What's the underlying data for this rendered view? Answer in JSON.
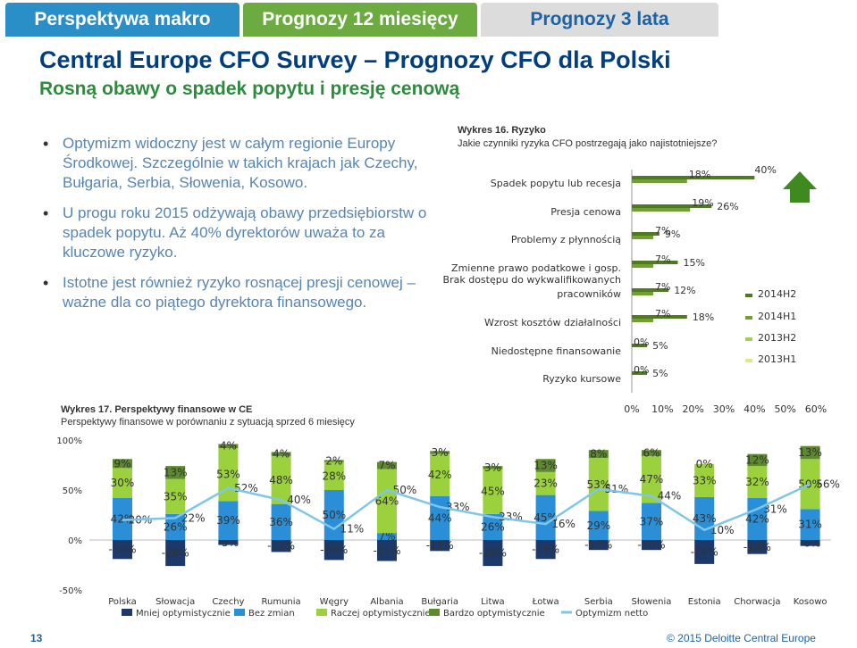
{
  "tabs": [
    "Perspektywa makro",
    "Prognozy 12 miesięcy",
    "Prognozy 3 lata"
  ],
  "title": "Central Europe CFO Survey – Prognozy CFO dla Polski",
  "subtitle": "Rosną obawy o spadek popytu i presję cenową",
  "bullets": [
    "Optymizm widoczny jest w całym regionie Europy Środkowej. Szczególnie w takich krajach jak Czechy, Bułgaria, Serbia, Słowenia, Kosowo.",
    "U progu roku 2015 odżywają obawy przedsiębiorstw o spadek popytu. Aż 40% dyrektorów uważa to za kluczowe ryzyko.",
    "Istotne jest również ryzyko rosnącej presji cenowej – ważne dla co piątego dyrektora finansowego."
  ],
  "wykres16": {
    "title": "Wykres 16. Ryzyko",
    "subtitle": "Jakie czynniki ryzyka CFO postrzegają jako najistotniejsze?"
  },
  "wykres17": {
    "title": "Wykres 17. Perspektywy finansowe w CE",
    "subtitle": "Perspektywy finansowe w porównaniu z sytuacją sprzed 6 miesięcy"
  },
  "colors": {
    "h2014H2": "#4f7a21",
    "h2014H1": "#6fa032",
    "h2013H2": "#a3cc5a",
    "h2013H1": "#d8ec8c",
    "mniej": "#1b3a6b",
    "bez": "#2a8fd6",
    "raczej": "#9bd13c",
    "bardzo": "#5d8a2c",
    "netto": "#7fc6e8"
  },
  "chart_data": [
    {
      "type": "bar",
      "orientation": "horizontal",
      "categories": [
        "Spadek popytu lub recesja",
        "Presja cenowa",
        "Problemy z płynnością",
        "Zmienne prawo podatkowe i gosp.",
        "Brak dostępu do wykwalifikowanych pracowników",
        "Wzrost kosztów działalności",
        "Niedostępne finansowanie",
        "Ryzyko kursowe"
      ],
      "series": [
        {
          "name": "2014H2",
          "values": [
            40,
            26,
            9,
            15,
            12,
            18,
            5,
            5
          ]
        },
        {
          "name": "2014H1",
          "values": [
            18,
            19,
            7,
            7,
            7,
            7,
            0,
            0
          ]
        },
        {
          "name": "2013H2",
          "values": [
            null,
            null,
            null,
            null,
            null,
            null,
            null,
            null
          ]
        },
        {
          "name": "2013H1",
          "values": [
            null,
            null,
            null,
            null,
            null,
            null,
            null,
            null
          ]
        }
      ],
      "point_labels": [
        [
          "40%",
          "18%"
        ],
        [
          "26%",
          "19%"
        ],
        [
          "9%",
          "7%"
        ],
        [
          "15%",
          "7%"
        ],
        [
          "12%",
          "7%"
        ],
        [
          "18%",
          "7%"
        ],
        [
          "5%",
          "0%"
        ],
        [
          "5%",
          "0%"
        ]
      ],
      "xticks": [
        "0%",
        "10%",
        "20%",
        "30%",
        "40%",
        "50%",
        "60%"
      ],
      "xlim": [
        0,
        60
      ],
      "legend": "right"
    },
    {
      "type": "bar",
      "stacked": true,
      "categories": [
        "Polska",
        "Słowacja",
        "Czechy",
        "Rumunia",
        "Węgry",
        "Albania",
        "Bułgaria",
        "Litwa",
        "Łotwa",
        "Serbia",
        "Słowenia",
        "Estonia",
        "Chorwacja",
        "Kosowo"
      ],
      "series": [
        {
          "name": "Mniej optymistycznie",
          "values": [
            -19,
            -26,
            -5,
            -12,
            -20,
            -21,
            -11,
            -26,
            -19,
            -10,
            -10,
            -24,
            -14,
            -6
          ]
        },
        {
          "name": "Bez zmian",
          "values": [
            42,
            26,
            39,
            36,
            50,
            7,
            44,
            26,
            45,
            29,
            37,
            43,
            42,
            31
          ]
        },
        {
          "name": "Raczej optymistycznie",
          "values": [
            30,
            35,
            53,
            48,
            28,
            64,
            42,
            45,
            23,
            53,
            47,
            33,
            32,
            50
          ]
        },
        {
          "name": "Bardzo optymistycznie",
          "values": [
            9,
            13,
            4,
            4,
            2,
            7,
            3,
            3,
            13,
            8,
            6,
            0,
            12,
            13
          ]
        },
        {
          "name": "Optymizm netto",
          "type": "line",
          "values": [
            20,
            22,
            52,
            40,
            11,
            50,
            33,
            23,
            16,
            51,
            44,
            10,
            31,
            56
          ]
        }
      ],
      "yticks": [
        "-50%",
        "0%",
        "50%",
        "100%"
      ],
      "ylim": [
        -50,
        100
      ],
      "legend": "bottom"
    }
  ],
  "footer": {
    "page": "13",
    "copyright": "© 2015 Deloitte Central Europe"
  }
}
